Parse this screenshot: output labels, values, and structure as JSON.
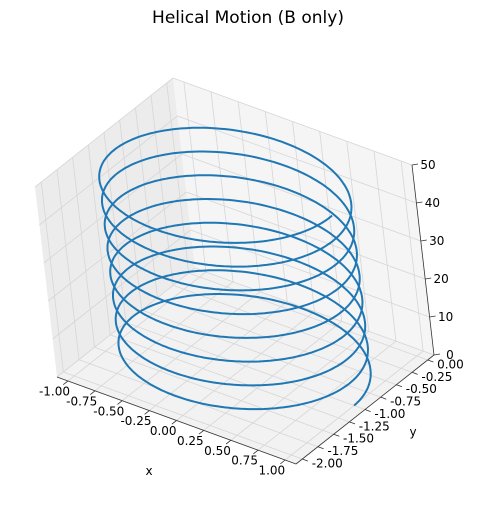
{
  "chart_data": {
    "type": "line",
    "projection": "3d",
    "title": "Helical Motion (B only)",
    "xlabel": "x",
    "ylabel": "y",
    "zlabel": "",
    "xlim": [
      -1.1,
      1.1
    ],
    "ylim": [
      -2.1,
      0.1
    ],
    "zlim": [
      0,
      50
    ],
    "x_ticks": [
      "-1.00",
      "-0.75",
      "-0.50",
      "-0.25",
      "0.00",
      "0.25",
      "0.50",
      "0.75",
      "1.00"
    ],
    "x_tick_values": [
      -1.0,
      -0.75,
      -0.5,
      -0.25,
      0.0,
      0.25,
      0.5,
      0.75,
      1.0
    ],
    "y_ticks": [
      "-2.00",
      "-1.75",
      "-1.50",
      "-1.25",
      "-1.00",
      "-0.75",
      "-0.50",
      "-0.25",
      "0.00"
    ],
    "y_tick_values": [
      -2.0,
      -1.75,
      -1.5,
      -1.25,
      -1.0,
      -0.75,
      -0.5,
      -0.25,
      0.0
    ],
    "z_ticks": [
      "0",
      "10",
      "20",
      "30",
      "40",
      "50"
    ],
    "z_tick_values": [
      0,
      10,
      20,
      30,
      40,
      50
    ],
    "grid": true,
    "series": [
      {
        "color": "#1f77b4",
        "curve": "helix",
        "center_x": 0.0,
        "center_y": -1.0,
        "radius": 1.0,
        "z_start": 0,
        "z_end": 50,
        "turns": 8,
        "start_angle_deg": 0
      }
    ]
  }
}
